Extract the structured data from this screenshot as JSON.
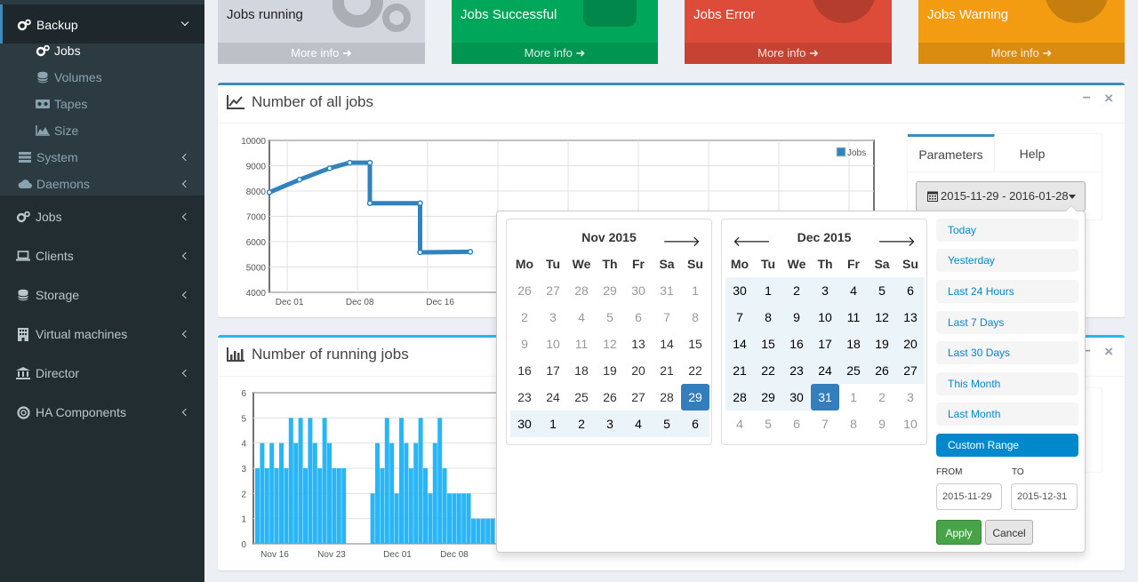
{
  "sidebar": {
    "backup": {
      "label": "Backup",
      "icon": "cogs-icon"
    },
    "sub": [
      {
        "label": "Jobs",
        "icon": "cogs-icon",
        "active": true
      },
      {
        "label": "Volumes",
        "icon": "database-icon"
      },
      {
        "label": "Tapes",
        "icon": "tape-icon"
      },
      {
        "label": "Size",
        "icon": "area-chart-icon"
      }
    ],
    "sub2": [
      {
        "label": "System",
        "icon": "tasks-icon"
      },
      {
        "label": "Daemons",
        "icon": "cloud-icon"
      }
    ],
    "items": [
      {
        "label": "Jobs",
        "icon": "cogs-icon"
      },
      {
        "label": "Clients",
        "icon": "laptop-icon"
      },
      {
        "label": "Storage",
        "icon": "database-icon"
      },
      {
        "label": "Virtual machines",
        "icon": "building-icon"
      },
      {
        "label": "Director",
        "icon": "bank-icon"
      },
      {
        "label": "HA Components",
        "icon": "life-ring-icon"
      }
    ]
  },
  "infoboxes": [
    {
      "title": "Jobs running",
      "footer": "More info",
      "color": "#d2d6de"
    },
    {
      "title": "Jobs Successful",
      "footer": "More info",
      "color": "#00a65a"
    },
    {
      "title": "Jobs Error",
      "footer": "More info",
      "color": "#dd4b39"
    },
    {
      "title": "Jobs Warning",
      "footer": "More info",
      "color": "#f39c12"
    }
  ],
  "box1": {
    "title": "Number of all jobs",
    "minimize": "−",
    "close": "×"
  },
  "box2": {
    "title": "Number of running jobs",
    "close": "×"
  },
  "params": {
    "tab_params": "Parameters",
    "tab_help": "Help",
    "range_button": "2015-11-29 - 2016-01-28"
  },
  "chart_data": [
    {
      "type": "line",
      "title": "",
      "series": [
        {
          "name": "Jobs",
          "x": [
            "2015-11-29",
            "2015-12-02",
            "2015-12-05",
            "2015-12-07",
            "2015-12-09",
            "2015-12-09",
            "2015-12-14",
            "2015-12-14",
            "2015-12-19"
          ],
          "values": [
            7950,
            8450,
            8900,
            9120,
            9120,
            7520,
            7520,
            5580,
            5600
          ]
        }
      ],
      "x_ticks": [
        "Dec 01",
        "Dec 08",
        "Dec 16"
      ],
      "y_ticks": [
        4000,
        5000,
        6000,
        7000,
        8000,
        9000,
        10000
      ],
      "ylim": [
        4000,
        10000
      ],
      "legend": "top-right",
      "color": "#3083bd",
      "grid": true
    },
    {
      "type": "bar",
      "title": "",
      "x_ticks": [
        "Nov 16",
        "Nov 23",
        "Dec 01",
        "Dec 08"
      ],
      "y_ticks": [
        0,
        1,
        2,
        3,
        4,
        5,
        6
      ],
      "ylim": [
        0,
        6
      ],
      "values": [
        3,
        4,
        3,
        4,
        3,
        4,
        3,
        5,
        4,
        5,
        3,
        5,
        4,
        3,
        5,
        4,
        3,
        3,
        3,
        0,
        0,
        0,
        0,
        0,
        2,
        4,
        3,
        5,
        4,
        2,
        5,
        4,
        3,
        4,
        5,
        3,
        2,
        4,
        5,
        3,
        2,
        2,
        2,
        2,
        2,
        1,
        1,
        1,
        1,
        1
      ],
      "color": "#29b6f6",
      "grid": true
    }
  ],
  "calendar": {
    "weekdays": [
      "Mo",
      "Tu",
      "We",
      "Th",
      "Fr",
      "Sa",
      "Su"
    ],
    "left": {
      "title": "Nov 2015",
      "days": [
        [
          "26",
          "27",
          "28",
          "29",
          "30",
          "31",
          "1"
        ],
        [
          "2",
          "3",
          "4",
          "5",
          "6",
          "7",
          "8"
        ],
        [
          "9",
          "10",
          "11",
          "12",
          "13",
          "14",
          "15"
        ],
        [
          "16",
          "17",
          "18",
          "19",
          "20",
          "21",
          "22"
        ],
        [
          "23",
          "24",
          "25",
          "26",
          "27",
          "28",
          "29"
        ],
        [
          "30",
          "1",
          "2",
          "3",
          "4",
          "5",
          "6"
        ]
      ]
    },
    "right": {
      "title": "Dec 2015",
      "days": [
        [
          "30",
          "1",
          "2",
          "3",
          "4",
          "5",
          "6"
        ],
        [
          "7",
          "8",
          "9",
          "10",
          "11",
          "12",
          "13"
        ],
        [
          "14",
          "15",
          "16",
          "17",
          "18",
          "19",
          "20"
        ],
        [
          "21",
          "22",
          "23",
          "24",
          "25",
          "26",
          "27"
        ],
        [
          "28",
          "29",
          "30",
          "31",
          "1",
          "2",
          "3"
        ],
        [
          "4",
          "5",
          "6",
          "7",
          "8",
          "9",
          "10"
        ]
      ]
    },
    "ranges": [
      "Today",
      "Yesterday",
      "Last 24 Hours",
      "Last 7 Days",
      "Last 30 Days",
      "This Month",
      "Last Month",
      "Custom Range"
    ],
    "from_label": "FROM",
    "to_label": "TO",
    "from_value": "2015-11-29",
    "to_value": "2015-12-31",
    "apply": "Apply",
    "cancel": "Cancel"
  }
}
